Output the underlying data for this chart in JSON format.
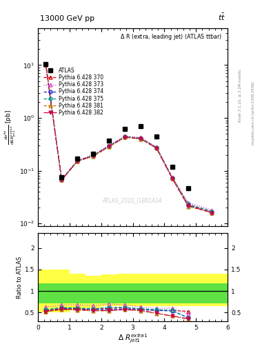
{
  "title_top": "13000 GeV pp",
  "title_top_right": "tt",
  "plot_title": "Δ R (extra, leading jet) (ATLAS ttbar)",
  "watermark": "ATLAS_2020_I1801434",
  "xdata": [
    0.25,
    0.75,
    1.25,
    1.75,
    2.25,
    2.75,
    3.25,
    3.75,
    4.25,
    4.75,
    5.5
  ],
  "atlas_y": [
    10.5,
    0.075,
    0.17,
    0.21,
    0.37,
    0.62,
    0.7,
    0.45,
    0.12,
    0.047,
    null
  ],
  "series": [
    {
      "label": "Pythia 6.428 370",
      "color": "#dd0000",
      "linestyle": "--",
      "marker": "^",
      "markerfacecolor": "none",
      "y": [
        10.2,
        0.068,
        0.155,
        0.195,
        0.295,
        0.44,
        0.415,
        0.275,
        0.073,
        0.023,
        0.017
      ],
      "ratio": [
        0.52,
        0.6,
        0.59,
        0.58,
        0.6,
        0.62,
        0.58,
        0.55,
        0.55,
        0.53,
        null
      ]
    },
    {
      "label": "Pythia 6.428 373",
      "color": "#cc44cc",
      "linestyle": ":",
      "marker": "^",
      "markerfacecolor": "none",
      "y": [
        10.3,
        0.069,
        0.158,
        0.2,
        0.305,
        0.455,
        0.425,
        0.282,
        0.076,
        0.025,
        0.018
      ],
      "ratio": [
        0.63,
        0.68,
        0.68,
        0.66,
        0.7,
        0.68,
        0.63,
        0.6,
        0.6,
        0.47,
        null
      ]
    },
    {
      "label": "Pythia 6.428 374",
      "color": "#2222cc",
      "linestyle": "--",
      "marker": "o",
      "markerfacecolor": "none",
      "y": [
        10.1,
        0.067,
        0.153,
        0.192,
        0.29,
        0.435,
        0.408,
        0.27,
        0.072,
        0.022,
        0.016
      ],
      "ratio": [
        0.55,
        0.6,
        0.59,
        0.57,
        0.57,
        0.59,
        0.57,
        0.55,
        0.54,
        0.38,
        null
      ]
    },
    {
      "label": "Pythia 6.428 375",
      "color": "#009999",
      "linestyle": "--",
      "marker": "o",
      "markerfacecolor": "none",
      "y": [
        10.15,
        0.068,
        0.155,
        0.195,
        0.295,
        0.44,
        0.412,
        0.273,
        0.073,
        0.023,
        0.017
      ],
      "ratio": [
        0.57,
        0.62,
        0.61,
        0.59,
        0.62,
        0.62,
        0.59,
        0.57,
        0.55,
        0.38,
        null
      ]
    },
    {
      "label": "Pythia 6.428 381",
      "color": "#bb7700",
      "linestyle": "--",
      "marker": "^",
      "markerfacecolor": "none",
      "y": [
        10.0,
        0.066,
        0.15,
        0.188,
        0.285,
        0.428,
        0.4,
        0.265,
        0.07,
        0.021,
        0.016
      ],
      "ratio": [
        0.52,
        0.57,
        0.56,
        0.54,
        0.54,
        0.57,
        0.54,
        0.48,
        0.42,
        0.35,
        null
      ]
    },
    {
      "label": "Pythia 6.428 382",
      "color": "#cc0044",
      "linestyle": "-.",
      "marker": "v",
      "markerfacecolor": "#cc0044",
      "y": [
        10.05,
        0.067,
        0.152,
        0.191,
        0.288,
        0.432,
        0.404,
        0.268,
        0.071,
        0.022,
        0.016
      ],
      "ratio": [
        0.53,
        0.58,
        0.57,
        0.55,
        0.55,
        0.57,
        0.55,
        0.49,
        0.42,
        0.36,
        null
      ]
    }
  ],
  "band_bins": [
    0,
    0.5,
    1.0,
    1.5,
    2.0,
    2.5,
    3.0,
    3.5,
    4.0,
    4.5,
    5.0,
    6.0
  ],
  "green_lo": [
    0.72,
    0.72,
    0.72,
    0.72,
    0.72,
    0.72,
    0.72,
    0.72,
    0.72,
    0.72,
    0.72
  ],
  "green_hi": [
    1.18,
    1.18,
    1.18,
    1.18,
    1.18,
    1.18,
    1.18,
    1.18,
    1.18,
    1.18,
    1.18
  ],
  "yellow_lo": [
    0.5,
    0.5,
    0.55,
    0.6,
    0.65,
    0.65,
    0.65,
    0.65,
    0.65,
    0.65,
    0.65
  ],
  "yellow_hi": [
    1.5,
    1.5,
    1.4,
    1.35,
    1.38,
    1.4,
    1.4,
    1.4,
    1.4,
    1.4,
    1.4
  ],
  "ylim_main": [
    0.009,
    50
  ],
  "ylim_ratio": [
    0.3,
    2.35
  ],
  "xlim": [
    0,
    6
  ],
  "yticks_ratio": [
    0.5,
    1.0,
    1.5,
    2.0
  ]
}
